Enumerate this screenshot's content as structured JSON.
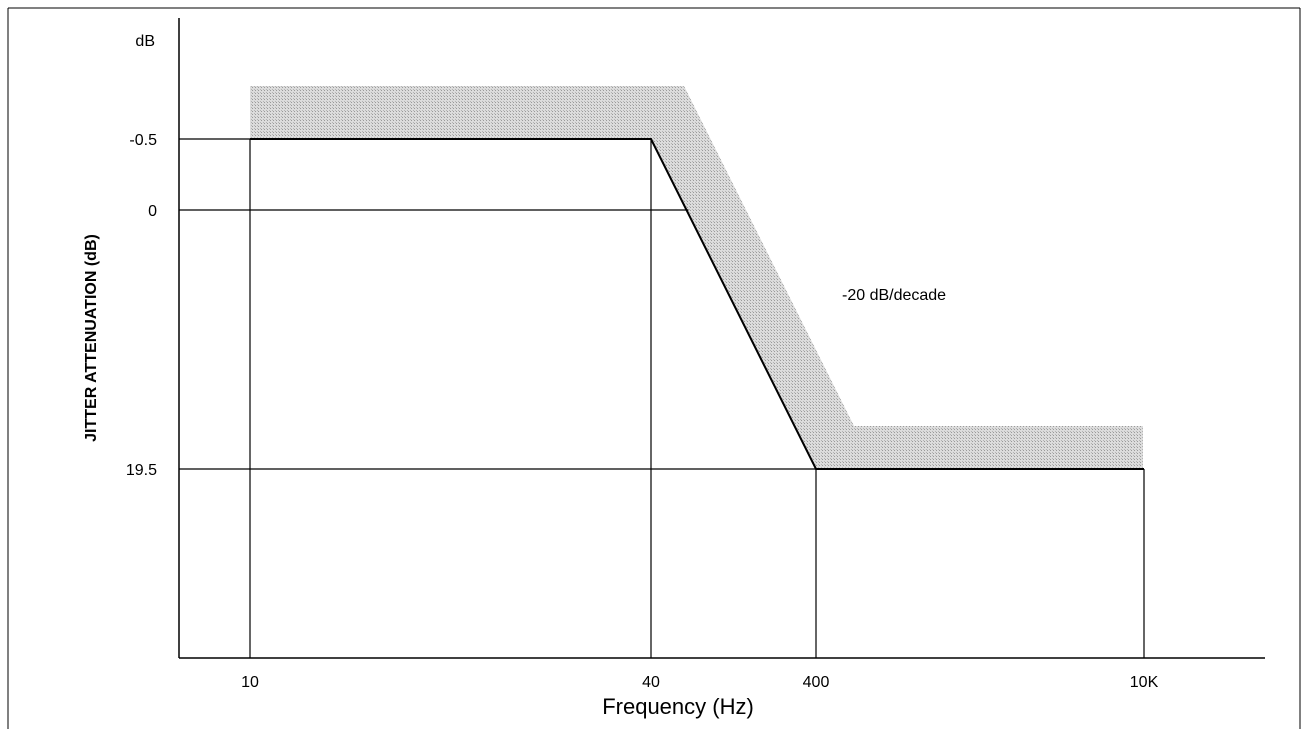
{
  "chart_data": {
    "type": "line",
    "xlabel": "Frequency (Hz)",
    "ylabel": "JITTER ATTENUATION (dB)",
    "y_unit": "dB",
    "x_scale": "log",
    "x_ticks": [
      {
        "value": 10,
        "label": "10"
      },
      {
        "value": 40,
        "label": "40"
      },
      {
        "value": 400,
        "label": "400"
      },
      {
        "value": 10000,
        "label": "10K"
      }
    ],
    "y_ticks": [
      {
        "value": -0.5,
        "label": "-0.5"
      },
      {
        "value": 0,
        "label": "0"
      },
      {
        "value": 19.5,
        "label": "19.5"
      }
    ],
    "series": [
      {
        "x": [
          10,
          40,
          400,
          10000
        ],
        "y": [
          -0.5,
          -0.5,
          19.5,
          19.5
        ]
      }
    ],
    "shaded_band": {
      "color": "#c8c8c8"
    },
    "annotations": [
      {
        "text": "-20 dB/decade"
      }
    ],
    "grid": false,
    "legend": "none"
  }
}
